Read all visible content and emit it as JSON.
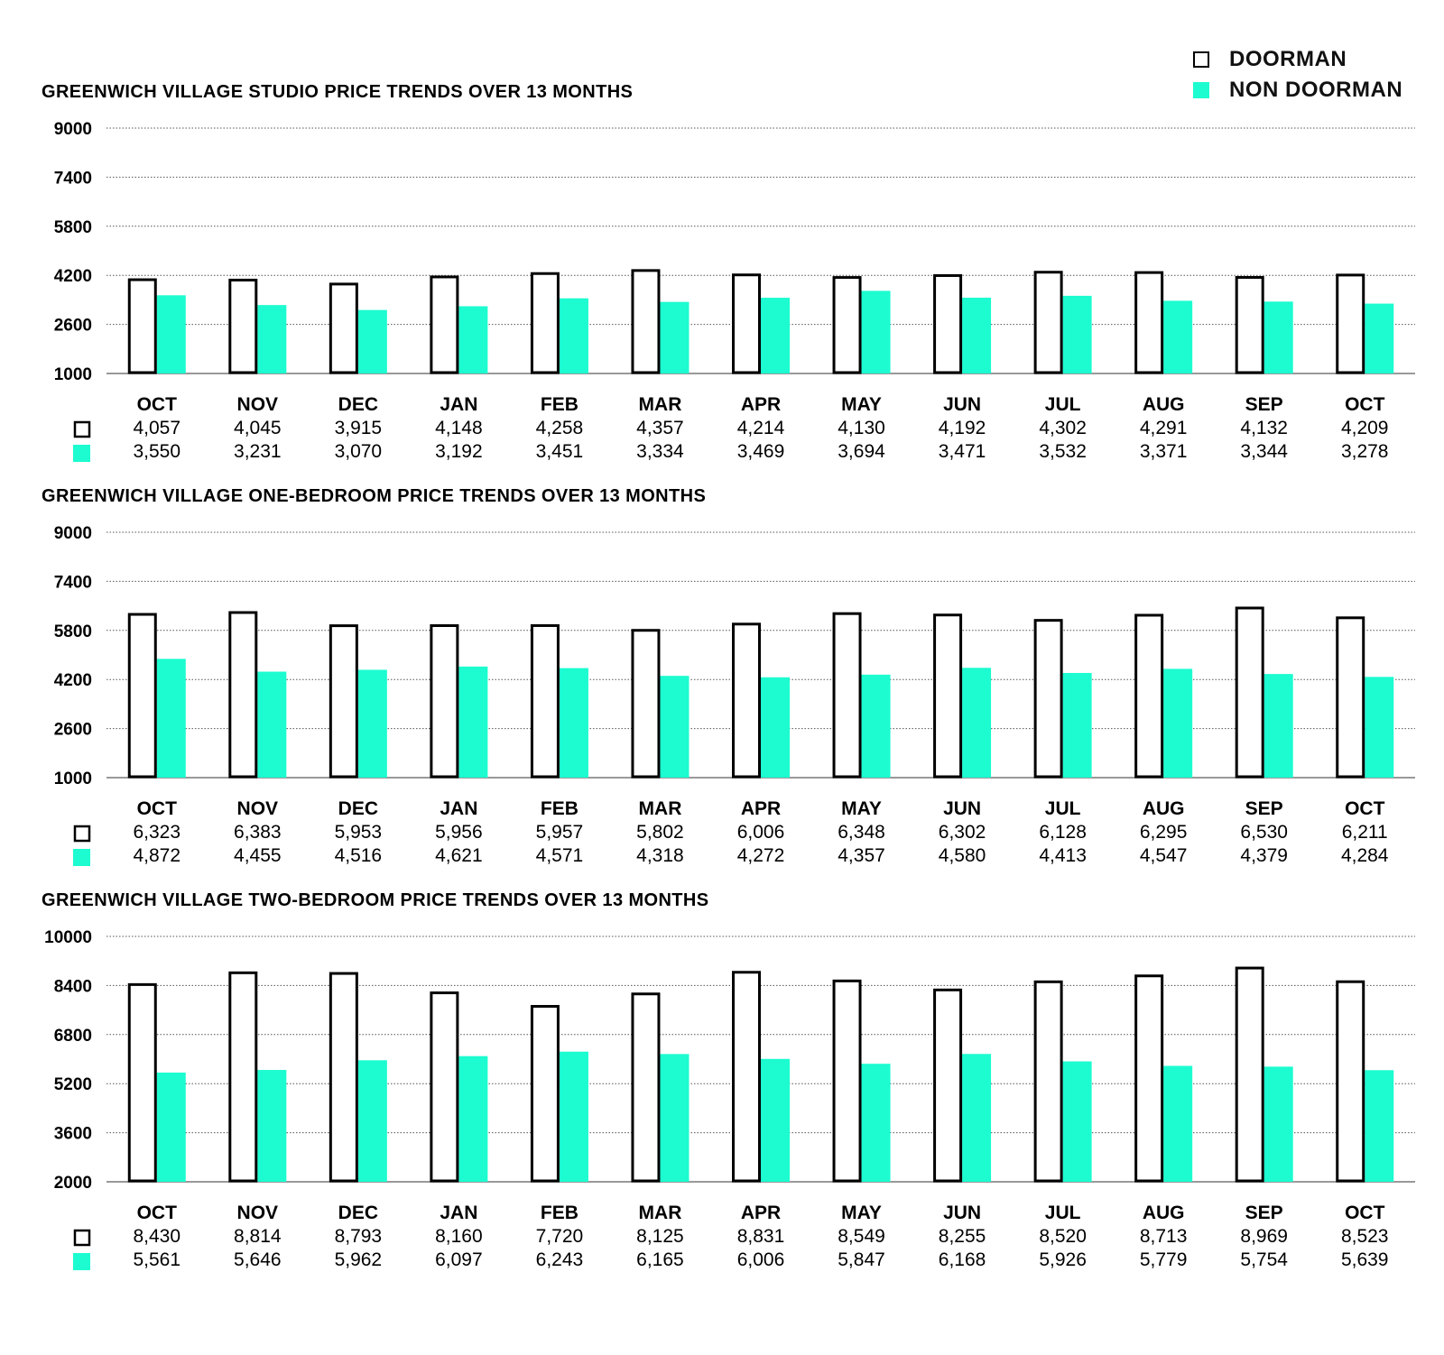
{
  "legend": {
    "doorman_label": "DOORMAN",
    "non_doorman_label": "NON DOORMAN"
  },
  "colors": {
    "doorman_fill": "#ffffff",
    "doorman_stroke": "#000000",
    "non_doorman": "#1cfcd0",
    "grid": "#555555"
  },
  "chart_data": [
    {
      "type": "bar",
      "title": "GREENWICH VILLAGE STUDIO PRICE TRENDS OVER 13 MONTHS",
      "categories": [
        "OCT",
        "NOV",
        "DEC",
        "JAN",
        "FEB",
        "MAR",
        "APR",
        "MAY",
        "JUN",
        "JUL",
        "AUG",
        "SEP",
        "OCT"
      ],
      "yticks": [
        1000,
        2600,
        4200,
        5800,
        7400,
        9000
      ],
      "ylim": [
        1000,
        9000
      ],
      "grid": true,
      "series": [
        {
          "name": "DOORMAN",
          "values": [
            4057,
            4045,
            3915,
            4148,
            4258,
            4357,
            4214,
            4130,
            4192,
            4302,
            4291,
            4132,
            4209
          ],
          "labels": [
            "4,057",
            "4,045",
            "3,915",
            "4,148",
            "4,258",
            "4,357",
            "4,214",
            "4,130",
            "4,192",
            "4,302",
            "4,291",
            "4,132",
            "4,209"
          ]
        },
        {
          "name": "NON DOORMAN",
          "values": [
            3550,
            3231,
            3070,
            3192,
            3451,
            3334,
            3469,
            3694,
            3471,
            3532,
            3371,
            3344,
            3278
          ],
          "labels": [
            "3,550",
            "3,231",
            "3,070",
            "3,192",
            "3,451",
            "3,334",
            "3,469",
            "3,694",
            "3,471",
            "3,532",
            "3,371",
            "3,344",
            "3,278"
          ]
        }
      ]
    },
    {
      "type": "bar",
      "title": "GREENWICH VILLAGE ONE-BEDROOM PRICE TRENDS OVER 13 MONTHS",
      "categories": [
        "OCT",
        "NOV",
        "DEC",
        "JAN",
        "FEB",
        "MAR",
        "APR",
        "MAY",
        "JUN",
        "JUL",
        "AUG",
        "SEP",
        "OCT"
      ],
      "yticks": [
        1000,
        2600,
        4200,
        5800,
        7400,
        9000
      ],
      "ylim": [
        1000,
        9000
      ],
      "grid": true,
      "series": [
        {
          "name": "DOORMAN",
          "values": [
            6323,
            6383,
            5953,
            5956,
            5957,
            5802,
            6006,
            6348,
            6302,
            6128,
            6295,
            6530,
            6211
          ],
          "labels": [
            "6,323",
            "6,383",
            "5,953",
            "5,956",
            "5,957",
            "5,802",
            "6,006",
            "6,348",
            "6,302",
            "6,128",
            "6,295",
            "6,530",
            "6,211"
          ]
        },
        {
          "name": "NON DOORMAN",
          "values": [
            4872,
            4455,
            4516,
            4621,
            4571,
            4318,
            4272,
            4357,
            4580,
            4413,
            4547,
            4379,
            4284
          ],
          "labels": [
            "4,872",
            "4,455",
            "4,516",
            "4,621",
            "4,571",
            "4,318",
            "4,272",
            "4,357",
            "4,580",
            "4,413",
            "4,547",
            "4,379",
            "4,284"
          ]
        }
      ]
    },
    {
      "type": "bar",
      "title": "GREENWICH VILLAGE TWO-BEDROOM PRICE TRENDS OVER 13 MONTHS",
      "categories": [
        "OCT",
        "NOV",
        "DEC",
        "JAN",
        "FEB",
        "MAR",
        "APR",
        "MAY",
        "JUN",
        "JUL",
        "AUG",
        "SEP",
        "OCT"
      ],
      "yticks": [
        2000,
        3600,
        5200,
        6800,
        8400,
        10000
      ],
      "ylim": [
        2000,
        10000
      ],
      "grid": true,
      "series": [
        {
          "name": "DOORMAN",
          "values": [
            8430,
            8814,
            8793,
            8160,
            7720,
            8125,
            8831,
            8549,
            8255,
            8520,
            8713,
            8969,
            8523
          ],
          "labels": [
            "8,430",
            "8,814",
            "8,793",
            "8,160",
            "7,720",
            "8,125",
            "8,831",
            "8,549",
            "8,255",
            "8,520",
            "8,713",
            "8,969",
            "8,523"
          ]
        },
        {
          "name": "NON DOORMAN",
          "values": [
            5561,
            5646,
            5962,
            6097,
            6243,
            6165,
            6006,
            5847,
            6168,
            5926,
            5779,
            5754,
            5639
          ],
          "labels": [
            "5,561",
            "5,646",
            "5,962",
            "6,097",
            "6,243",
            "6,165",
            "6,006",
            "5,847",
            "6,168",
            "5,926",
            "5,779",
            "5,754",
            "5,639"
          ]
        }
      ]
    }
  ]
}
